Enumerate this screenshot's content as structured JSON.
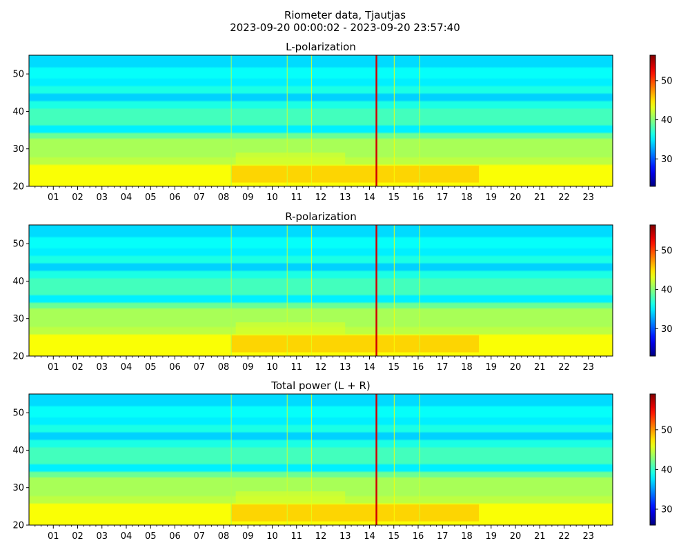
{
  "figure": {
    "title_line1": "Riometer data, Tjautjas",
    "title_line2": "2023-09-20 00:00:02 - 2023-09-20 23:57:40"
  },
  "colors": {
    "colormap": "jet",
    "spectrogram_base": "#5dd4ff"
  },
  "chart_data": [
    {
      "type": "heatmap",
      "title": "L-polarization",
      "x_range": [
        "2023-09-20 00:00:02",
        "2023-09-20 23:57:40"
      ],
      "xticklabels": [
        "01",
        "02",
        "03",
        "04",
        "05",
        "06",
        "07",
        "08",
        "09",
        "10",
        "11",
        "12",
        "13",
        "14",
        "15",
        "16",
        "17",
        "18",
        "19",
        "20",
        "21",
        "22",
        "23"
      ],
      "ylim": [
        20,
        55
      ],
      "yticks": [
        20,
        30,
        40,
        50
      ],
      "colorbar": {
        "min": 23,
        "max": 56.5,
        "ticks": [
          30,
          40,
          50
        ]
      },
      "grid": false
    },
    {
      "type": "heatmap",
      "title": "R-polarization",
      "x_range": [
        "2023-09-20 00:00:02",
        "2023-09-20 23:57:40"
      ],
      "xticklabels": [
        "01",
        "02",
        "03",
        "04",
        "05",
        "06",
        "07",
        "08",
        "09",
        "10",
        "11",
        "12",
        "13",
        "14",
        "15",
        "16",
        "17",
        "18",
        "19",
        "20",
        "21",
        "22",
        "23"
      ],
      "ylim": [
        20,
        55
      ],
      "yticks": [
        20,
        30,
        40,
        50
      ],
      "colorbar": {
        "min": 23,
        "max": 56.5,
        "ticks": [
          30,
          40,
          50
        ]
      },
      "grid": false
    },
    {
      "type": "heatmap",
      "title": "Total power (L + R)",
      "x_range": [
        "2023-09-20 00:00:02",
        "2023-09-20 23:57:40"
      ],
      "xticklabels": [
        "01",
        "02",
        "03",
        "04",
        "05",
        "06",
        "07",
        "08",
        "09",
        "10",
        "11",
        "12",
        "13",
        "14",
        "15",
        "16",
        "17",
        "18",
        "19",
        "20",
        "21",
        "22",
        "23"
      ],
      "ylim": [
        20,
        55
      ],
      "yticks": [
        20,
        30,
        40,
        50
      ],
      "colorbar": {
        "min": 26,
        "max": 59,
        "ticks": [
          30,
          40,
          50
        ]
      },
      "grid": false
    }
  ]
}
